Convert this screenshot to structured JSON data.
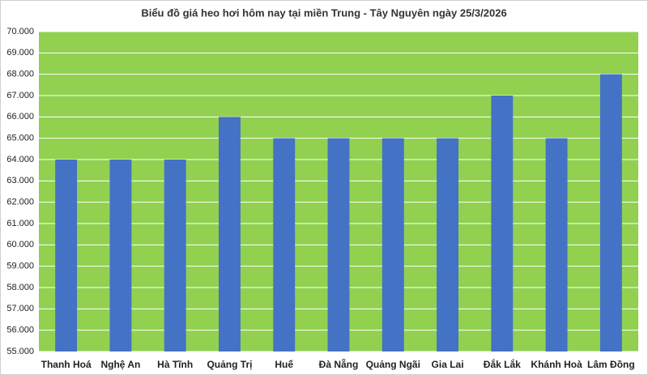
{
  "chart_data": {
    "type": "bar",
    "title": "Biểu đồ giá heo hơi hôm nay tại miền Trung - Tây Nguyên ngày 25/3/2026",
    "categories": [
      "Thanh Hoá",
      "Nghệ An",
      "Hà Tĩnh",
      "Quảng Trị",
      "Huế",
      "Đà Nẵng",
      "Quảng Ngãi",
      "Gia Lai",
      "Đắk Lắk",
      "Khánh Hoà",
      "Lâm Đồng"
    ],
    "values": [
      64000,
      64000,
      64000,
      66000,
      65000,
      65000,
      65000,
      65000,
      67000,
      65000,
      68000
    ],
    "color": "#4472c4",
    "plot_background": "#92d050",
    "ylim": [
      55000,
      70000
    ],
    "yticks": [
      {
        "value": 55000,
        "label": "55.000"
      },
      {
        "value": 56000,
        "label": "56.000"
      },
      {
        "value": 57000,
        "label": "57.000"
      },
      {
        "value": 58000,
        "label": "58.000"
      },
      {
        "value": 59000,
        "label": "59.000"
      },
      {
        "value": 60000,
        "label": "60.000"
      },
      {
        "value": 61000,
        "label": "61.000"
      },
      {
        "value": 62000,
        "label": "62.000"
      },
      {
        "value": 63000,
        "label": "63.000"
      },
      {
        "value": 64000,
        "label": "64.000"
      },
      {
        "value": 65000,
        "label": "65.000"
      },
      {
        "value": 66000,
        "label": "66.000"
      },
      {
        "value": 67000,
        "label": "67.000"
      },
      {
        "value": 68000,
        "label": "68.000"
      },
      {
        "value": 69000,
        "label": "69.000"
      },
      {
        "value": 70000,
        "label": "70.000"
      }
    ],
    "grid": true
  }
}
